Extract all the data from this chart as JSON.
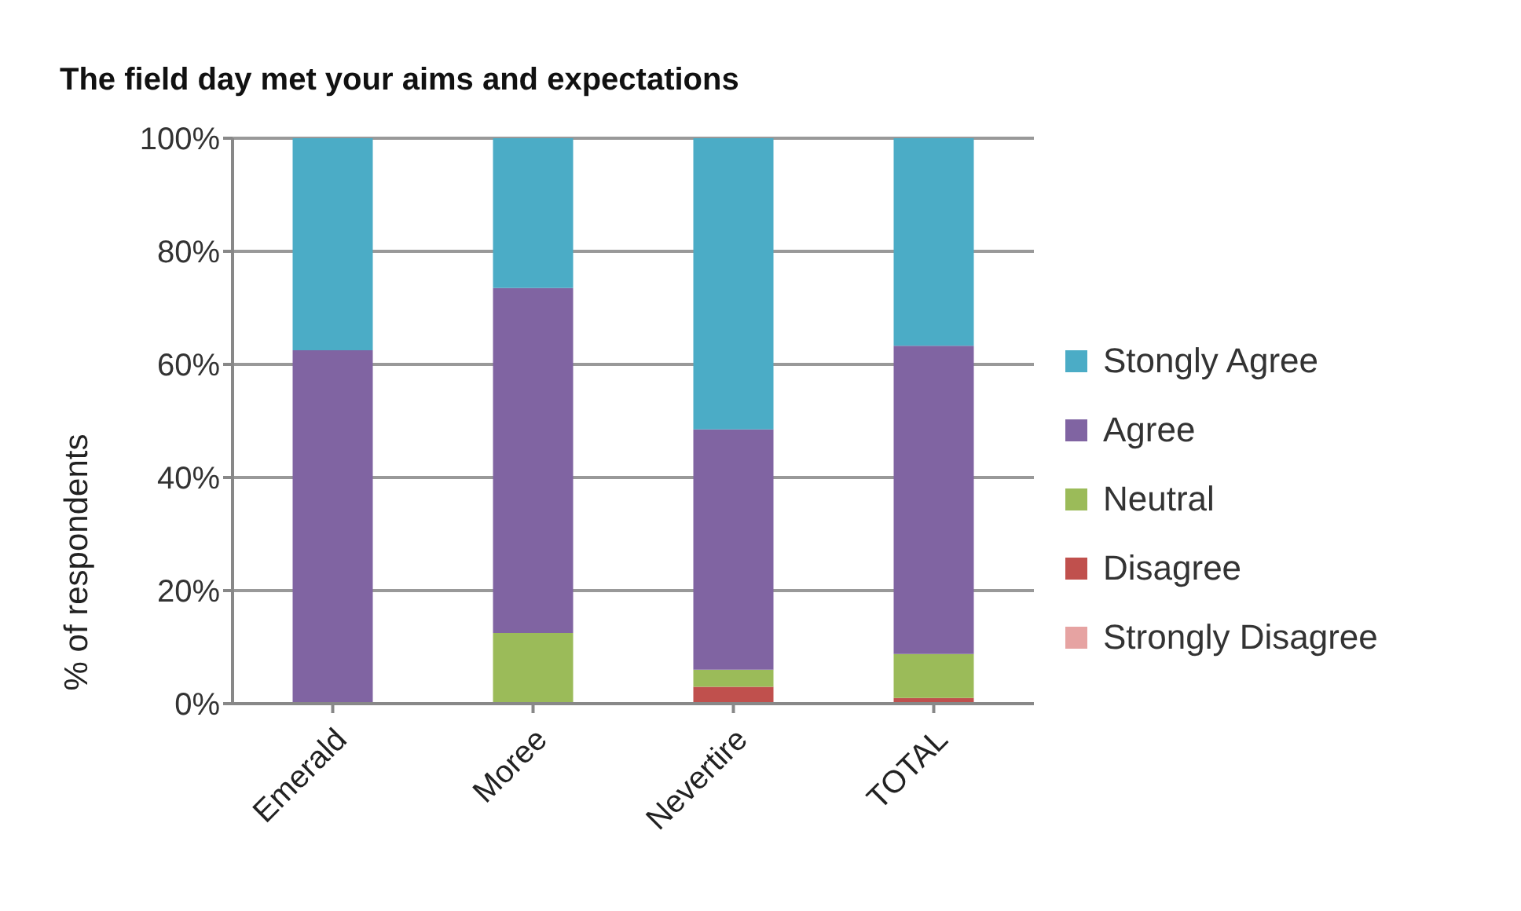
{
  "chart_data": {
    "type": "bar",
    "stacked": true,
    "title": "The field day met your aims and expectations",
    "ylabel": "% of respondents",
    "categories": [
      "Emerald",
      "Moree",
      "Nevertire",
      "TOTAL"
    ],
    "series": [
      {
        "name": "Strongly Disagree",
        "color": "#e6a3a2",
        "values": [
          0,
          0,
          0,
          0
        ]
      },
      {
        "name": "Disagree",
        "color": "#c0504d",
        "values": [
          0,
          0,
          3,
          1
        ]
      },
      {
        "name": "Neutral",
        "color": "#9bbb59",
        "values": [
          0,
          12.5,
          3,
          7.8
        ]
      },
      {
        "name": "Agree",
        "color": "#8064a2",
        "values": [
          62.5,
          61,
          42.5,
          54.5
        ]
      },
      {
        "name": "Stongly Agree",
        "color": "#4bacc6",
        "values": [
          37.5,
          26.5,
          51.5,
          36.7
        ]
      }
    ],
    "ylim": [
      0,
      100
    ],
    "yticks": [
      {
        "value": 0,
        "label": "0%"
      },
      {
        "value": 20,
        "label": "20%"
      },
      {
        "value": 40,
        "label": "40%"
      },
      {
        "value": 60,
        "label": "60%"
      },
      {
        "value": 80,
        "label": "80%"
      },
      {
        "value": 100,
        "label": "100%"
      }
    ],
    "grid": "y",
    "legend": "right"
  }
}
